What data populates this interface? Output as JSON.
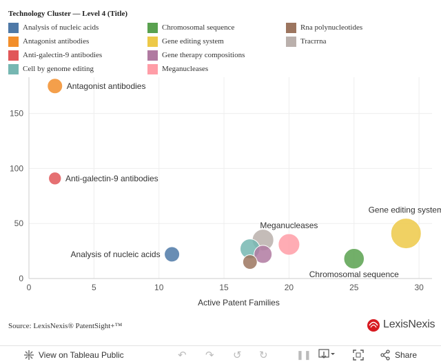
{
  "legend": {
    "title": "Technology Cluster — Level 4 (Title)",
    "items": [
      {
        "label": "Analysis of nucleic acids",
        "color": "#4e79a7"
      },
      {
        "label": "Antagonist antibodies",
        "color": "#f28e2b"
      },
      {
        "label": "Anti-galectin-9 antibodies",
        "color": "#e15759"
      },
      {
        "label": "Cell by genome editing",
        "color": "#76b7b2"
      },
      {
        "label": "Chromosomal sequence",
        "color": "#59a14f"
      },
      {
        "label": "Gene editing system",
        "color": "#edc948"
      },
      {
        "label": "Gene therapy compositions",
        "color": "#b07aa1"
      },
      {
        "label": "Meganucleases",
        "color": "#ff9da7"
      },
      {
        "label": "Rna polynucleotides",
        "color": "#9c755f"
      },
      {
        "label": "Tracrrna",
        "color": "#bab0ac"
      }
    ]
  },
  "chart_data": {
    "type": "scatter",
    "xlabel": "Active Patent Families",
    "ylabel": "",
    "xlim": [
      0,
      31
    ],
    "ylim": [
      0,
      183
    ],
    "xticks": [
      0,
      5,
      10,
      15,
      20,
      25,
      30
    ],
    "yticks": [
      0,
      50,
      100,
      150
    ],
    "grid": true,
    "points": [
      {
        "name": "Antagonist antibodies",
        "x": 2,
        "y": 175,
        "size": 10,
        "color": "#f28e2b",
        "label": "Antagonist antibodies",
        "label_pos": "right"
      },
      {
        "name": "Anti-galectin-9 antibodies",
        "x": 2,
        "y": 91,
        "size": 7,
        "color": "#e15759",
        "label": "Anti-galectin-9 antibodies",
        "label_pos": "right"
      },
      {
        "name": "Analysis of nucleic acids",
        "x": 11,
        "y": 22,
        "size": 10,
        "color": "#4e79a7",
        "label": "Analysis of nucleic acids",
        "label_pos": "left"
      },
      {
        "name": "Rna polynucleotides",
        "x": 17,
        "y": 15,
        "size": 9,
        "color": "#9c755f",
        "label": "",
        "label_pos": "none"
      },
      {
        "name": "Cell by genome editing",
        "x": 17,
        "y": 27,
        "size": 17,
        "color": "#76b7b2",
        "label": "",
        "label_pos": "none"
      },
      {
        "name": "Tracrrna",
        "x": 18,
        "y": 35,
        "size": 20,
        "color": "#bab0ac",
        "label": "",
        "label_pos": "none"
      },
      {
        "name": "Gene therapy compositions",
        "x": 18,
        "y": 22,
        "size": 14,
        "color": "#b07aa1",
        "label": "",
        "label_pos": "none"
      },
      {
        "name": "Meganucleases",
        "x": 20,
        "y": 31,
        "size": 20,
        "color": "#ff9da7",
        "label": "Meganucleases",
        "label_pos": "above"
      },
      {
        "name": "Chromosomal sequence",
        "x": 25,
        "y": 18,
        "size": 18,
        "color": "#59a14f",
        "label": "Chromosomal sequence",
        "label_pos": "below"
      },
      {
        "name": "Gene editing system",
        "x": 29,
        "y": 41,
        "size": 40,
        "color": "#edc948",
        "label": "Gene editing system",
        "label_pos": "above"
      }
    ]
  },
  "footer": {
    "source": "Source: LexisNexis® PatentSight+™",
    "brand": "LexisNexis"
  },
  "toolbar": {
    "view_label": "View on Tableau Public",
    "share_label": "Share"
  }
}
